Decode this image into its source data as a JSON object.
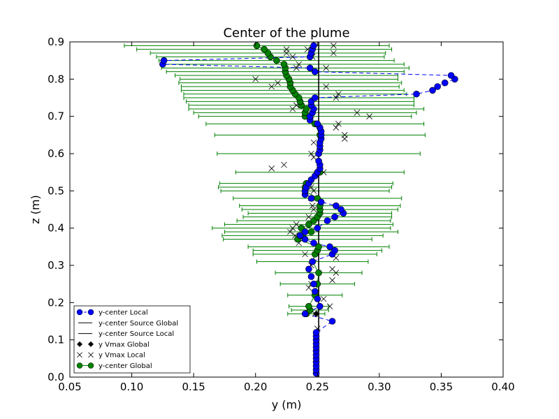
{
  "chart_data": {
    "type": "scatter",
    "title": "Center of the plume",
    "xlabel": "y (m)",
    "ylabel": "z (m)",
    "xlim": [
      0.05,
      0.4
    ],
    "ylim": [
      0.0,
      0.9
    ],
    "xticks": [
      "0.05",
      "0.10",
      "0.15",
      "0.20",
      "0.25",
      "0.30",
      "0.35",
      "0.40"
    ],
    "yticks": [
      "0.0",
      "0.1",
      "0.2",
      "0.3",
      "0.4",
      "0.5",
      "0.6",
      "0.7",
      "0.8",
      "0.9"
    ],
    "grid": false,
    "legend_position": "lower-left",
    "legend": [
      {
        "label": "y-center Local",
        "kind": "local_center"
      },
      {
        "label": "y-center Source Global",
        "kind": "source_global"
      },
      {
        "label": "y-center Source Local",
        "kind": "source_local"
      },
      {
        "label": "y Vmax Global",
        "kind": "vmax_global"
      },
      {
        "label": "y Vmax Local",
        "kind": "vmax_local"
      },
      {
        "label": "y-center Global",
        "kind": "global_center"
      }
    ],
    "colors": {
      "local": "#0000ff",
      "global": "#008000",
      "source": "#000000",
      "vmax": "#000000"
    },
    "series": [
      {
        "name": "y-center Local",
        "z": [
          0.01,
          0.02,
          0.03,
          0.04,
          0.05,
          0.06,
          0.07,
          0.08,
          0.09,
          0.1,
          0.11,
          0.12,
          0.15,
          0.17,
          0.19,
          0.21,
          0.23,
          0.25,
          0.27,
          0.29,
          0.31,
          0.33,
          0.34,
          0.35,
          0.36,
          0.37,
          0.38,
          0.39,
          0.4,
          0.42,
          0.43,
          0.44,
          0.45,
          0.46,
          0.47,
          0.48,
          0.49,
          0.5,
          0.51,
          0.52,
          0.53,
          0.54,
          0.55,
          0.56,
          0.57,
          0.58,
          0.6,
          0.61,
          0.62,
          0.63,
          0.64,
          0.65,
          0.66,
          0.67,
          0.68,
          0.69,
          0.7,
          0.71,
          0.72,
          0.73,
          0.74,
          0.75,
          0.76,
          0.77,
          0.78,
          0.79,
          0.8,
          0.81,
          0.82,
          0.83,
          0.84,
          0.85,
          0.86,
          0.87,
          0.88,
          0.89
        ],
        "y": [
          0.249,
          0.249,
          0.249,
          0.249,
          0.249,
          0.249,
          0.249,
          0.249,
          0.249,
          0.249,
          0.249,
          0.249,
          0.262,
          0.24,
          0.252,
          0.25,
          0.248,
          0.247,
          0.245,
          0.243,
          0.246,
          0.262,
          0.264,
          0.26,
          0.247,
          0.24,
          0.236,
          0.24,
          0.25,
          0.258,
          0.264,
          0.271,
          0.269,
          0.265,
          0.253,
          0.245,
          0.24,
          0.24,
          0.241,
          0.243,
          0.245,
          0.248,
          0.25,
          0.252,
          0.252,
          0.251,
          0.251,
          0.252,
          0.252,
          0.252,
          0.253,
          0.253,
          0.253,
          0.252,
          0.25,
          0.244,
          0.244,
          0.246,
          0.247,
          0.245,
          0.245,
          0.248,
          0.33,
          0.343,
          0.347,
          0.353,
          0.361,
          0.358,
          0.248,
          0.244,
          0.125,
          0.126,
          0.244,
          0.245,
          0.246,
          0.247
        ]
      },
      {
        "name": "y-center Global",
        "z": [
          0.17,
          0.18,
          0.19,
          0.22,
          0.25,
          0.28,
          0.31,
          0.33,
          0.34,
          0.35,
          0.37,
          0.38,
          0.39,
          0.4,
          0.41,
          0.42,
          0.43,
          0.44,
          0.45,
          0.46,
          0.48,
          0.5,
          0.51,
          0.52,
          0.55,
          0.6,
          0.65,
          0.68,
          0.7,
          0.71,
          0.72,
          0.73,
          0.74,
          0.75,
          0.76,
          0.77,
          0.78,
          0.79,
          0.8,
          0.81,
          0.82,
          0.83,
          0.84,
          0.85,
          0.86,
          0.87,
          0.88,
          0.89
        ],
        "y": [
          0.241,
          0.244,
          0.243,
          0.248,
          0.25,
          0.251,
          0.246,
          0.248,
          0.25,
          0.251,
          0.234,
          0.238,
          0.245,
          0.237,
          0.243,
          0.247,
          0.25,
          0.252,
          0.252,
          0.252,
          0.25,
          0.24,
          0.24,
          0.241,
          0.252,
          0.251,
          0.252,
          0.248,
          0.24,
          0.24,
          0.241,
          0.237,
          0.236,
          0.235,
          0.232,
          0.23,
          0.228,
          0.228,
          0.227,
          0.225,
          0.224,
          0.224,
          0.223,
          0.217,
          0.212,
          0.21,
          0.207,
          0.201
        ],
        "err_left": [
          0.015,
          0.015,
          0.016,
          0.022,
          0.03,
          0.035,
          0.045,
          0.05,
          0.052,
          0.057,
          0.06,
          0.065,
          0.07,
          0.072,
          0.068,
          0.062,
          0.06,
          0.058,
          0.063,
          0.065,
          0.068,
          0.068,
          0.07,
          0.07,
          0.068,
          0.082,
          0.085,
          0.088,
          0.086,
          0.09,
          0.095,
          0.091,
          0.092,
          0.093,
          0.09,
          0.09,
          0.088,
          0.09,
          0.088,
          0.09,
          0.096,
          0.1,
          0.097,
          0.095,
          0.092,
          0.095,
          0.103,
          0.107
        ],
        "err_right": [
          0.015,
          0.015,
          0.016,
          0.022,
          0.03,
          0.035,
          0.045,
          0.05,
          0.052,
          0.057,
          0.06,
          0.065,
          0.07,
          0.072,
          0.068,
          0.062,
          0.06,
          0.058,
          0.063,
          0.065,
          0.068,
          0.068,
          0.07,
          0.07,
          0.068,
          0.082,
          0.085,
          0.088,
          0.086,
          0.09,
          0.095,
          0.091,
          0.092,
          0.093,
          0.09,
          0.09,
          0.088,
          0.09,
          0.088,
          0.09,
          0.096,
          0.1,
          0.097,
          0.095,
          0.092,
          0.095,
          0.103,
          0.107
        ]
      },
      {
        "name": "y Vmax Local",
        "points": [
          [
            0.25,
            0.13
          ],
          [
            0.248,
            0.17
          ],
          [
            0.26,
            0.19
          ],
          [
            0.255,
            0.21
          ],
          [
            0.243,
            0.24
          ],
          [
            0.245,
            0.25
          ],
          [
            0.262,
            0.26
          ],
          [
            0.265,
            0.28
          ],
          [
            0.262,
            0.29
          ],
          [
            0.245,
            0.3
          ],
          [
            0.265,
            0.32
          ],
          [
            0.24,
            0.33
          ],
          [
            0.235,
            0.36
          ],
          [
            0.232,
            0.38
          ],
          [
            0.228,
            0.39
          ],
          [
            0.23,
            0.4
          ],
          [
            0.233,
            0.41
          ],
          [
            0.243,
            0.43
          ],
          [
            0.247,
            0.45
          ],
          [
            0.246,
            0.46
          ],
          [
            0.245,
            0.48
          ],
          [
            0.247,
            0.5
          ],
          [
            0.245,
            0.51
          ],
          [
            0.255,
            0.55
          ],
          [
            0.213,
            0.56
          ],
          [
            0.223,
            0.57
          ],
          [
            0.247,
            0.59
          ],
          [
            0.245,
            0.6
          ],
          [
            0.247,
            0.63
          ],
          [
            0.272,
            0.64
          ],
          [
            0.272,
            0.65
          ],
          [
            0.265,
            0.67
          ],
          [
            0.267,
            0.68
          ],
          [
            0.245,
            0.69
          ],
          [
            0.292,
            0.7
          ],
          [
            0.282,
            0.71
          ],
          [
            0.23,
            0.72
          ],
          [
            0.233,
            0.73
          ],
          [
            0.265,
            0.75
          ],
          [
            0.267,
            0.76
          ],
          [
            0.257,
            0.78
          ],
          [
            0.213,
            0.78
          ],
          [
            0.218,
            0.79
          ],
          [
            0.2,
            0.8
          ],
          [
            0.233,
            0.83
          ],
          [
            0.257,
            0.83
          ],
          [
            0.235,
            0.84
          ],
          [
            0.246,
            0.86
          ],
          [
            0.23,
            0.86
          ],
          [
            0.225,
            0.87
          ],
          [
            0.242,
            0.88
          ],
          [
            0.263,
            0.87
          ],
          [
            0.225,
            0.88
          ],
          [
            0.263,
            0.89
          ]
        ]
      },
      {
        "name": "y-center Source Global",
        "x": 0.251
      },
      {
        "name": "y Vmax Global",
        "points": [
          [
            0.249,
            0.17
          ]
        ]
      }
    ]
  }
}
